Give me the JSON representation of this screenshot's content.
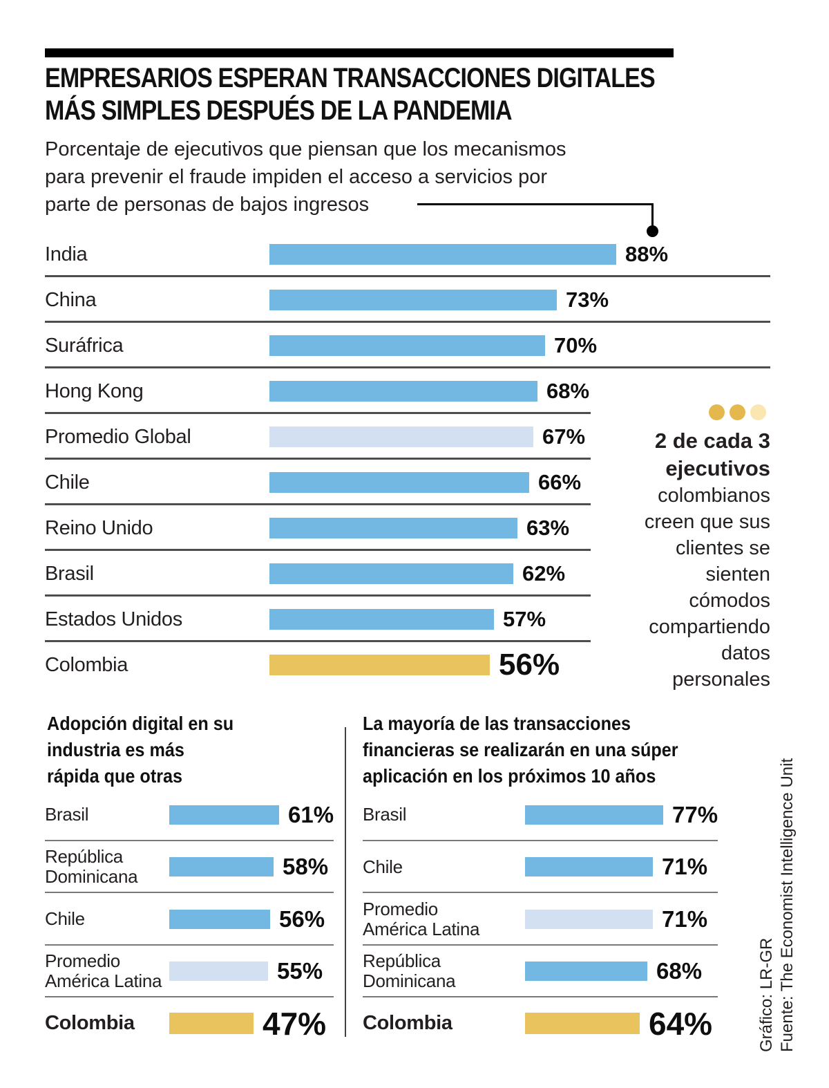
{
  "header": {
    "title_lines": [
      "EMPRESARIOS ESPERAN TRANSACCIONES DIGITALES",
      "MÁS SIMPLES DESPUÉS DE LA PANDEMIA"
    ],
    "subtitle_lines": [
      "Porcentaje de ejecutivos que piensan que los mecanismos",
      "para prevenir el fraude impiden el acceso a servicios por",
      "parte de personas de bajos ingresos"
    ]
  },
  "colors": {
    "bar_blue": "#73B8E3",
    "bar_light_blue": "#D3E0F1",
    "bar_gold": "#E9C35D",
    "dot_gold": "#E5B84E",
    "dot_light_gold": "#F9E6B1",
    "text": "#231F20"
  },
  "aside": {
    "dots": [
      "#E5B84E",
      "#E5B84E",
      "#F9E6B1"
    ],
    "bold_lines": [
      "2 de cada 3",
      "ejecutivos"
    ],
    "lines": [
      "colombianos",
      "creen que sus",
      "clientes se",
      "sienten",
      "cómodos",
      "compartiendo",
      "datos",
      "personales"
    ]
  },
  "source": {
    "credit": "Gráfico: LR-GR",
    "attribution": "Fuente: The Economist Intelligence Unit"
  },
  "chart_data": [
    {
      "id": "main",
      "type": "bar",
      "orientation": "horizontal",
      "title": "Porcentaje de ejecutivos que piensan que los mecanismos para prevenir el fraude impiden el acceso a servicios por parte de personas de bajos ingresos",
      "value_suffix": "%",
      "xlim": [
        0,
        100
      ],
      "grid": false,
      "legend": "none",
      "categories": [
        "India",
        "China",
        "Suráfrica",
        "Hong Kong",
        "Promedio Global",
        "Chile",
        "Reino Unido",
        "Brasil",
        "Estados Unidos",
        "Colombia"
      ],
      "values": [
        88,
        73,
        70,
        68,
        67,
        66,
        63,
        62,
        57,
        56
      ],
      "styles": [
        "blue",
        "blue",
        "blue",
        "blue",
        "light",
        "blue",
        "blue",
        "blue",
        "blue",
        "gold"
      ],
      "highlight": "Colombia"
    },
    {
      "id": "bottom-left",
      "type": "bar",
      "orientation": "horizontal",
      "title": "Adopción digital en su\nindustria es más\nrápida que otras",
      "value_suffix": "%",
      "xlim": [
        0,
        100
      ],
      "grid": false,
      "legend": "none",
      "categories": [
        "Brasil",
        "República\nDominicana",
        "Chile",
        "Promedio\nAmérica Latina",
        "Colombia"
      ],
      "values": [
        61,
        58,
        56,
        55,
        47
      ],
      "styles": [
        "blue",
        "blue",
        "blue",
        "light",
        "gold"
      ],
      "highlight": "Colombia"
    },
    {
      "id": "bottom-right",
      "type": "bar",
      "orientation": "horizontal",
      "title": "La mayoría de las transacciones\nfinancieras se realizarán en una súper\naplicación en los próximos 10 años",
      "value_suffix": "%",
      "xlim": [
        0,
        100
      ],
      "grid": false,
      "legend": "none",
      "categories": [
        "Brasil",
        "Chile",
        "Promedio\nAmérica Latina",
        "República\nDominicana",
        "Colombia"
      ],
      "values": [
        77,
        71,
        71,
        68,
        64
      ],
      "styles": [
        "blue",
        "blue",
        "light",
        "blue",
        "gold"
      ],
      "highlight": "Colombia"
    }
  ]
}
